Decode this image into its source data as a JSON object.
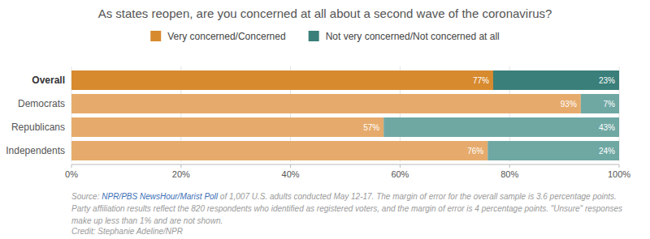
{
  "chart_data": {
    "type": "bar",
    "orientation": "horizontal",
    "stacked": true,
    "title": "As states reopen, are you concerned at all about a second wave of the coronavirus?",
    "categories": [
      "Overall",
      "Democrats",
      "Republicans",
      "Independents"
    ],
    "series": [
      {
        "name": "Very concerned/Concerned",
        "color": "#d78a2e",
        "colors": [
          "#d78a2e",
          "#e6ab6c",
          "#e6ab6c",
          "#e6ab6c"
        ],
        "values": [
          77,
          93,
          57,
          76
        ],
        "value_labels": [
          "77%",
          "93%",
          "57%",
          "76%"
        ]
      },
      {
        "name": "Not very concerned/Not concerned at all",
        "color": "#3a7f79",
        "colors": [
          "#3a7f79",
          "#6fa8a3",
          "#6fa8a3",
          "#6fa8a3"
        ],
        "values": [
          23,
          7,
          43,
          24
        ],
        "value_labels": [
          "23%",
          "7%",
          "43%",
          "24%"
        ]
      }
    ],
    "xlim": [
      0,
      100
    ],
    "xticks": [
      {
        "value": 0,
        "label": "0%"
      },
      {
        "value": 20,
        "label": "20%"
      },
      {
        "value": 40,
        "label": "40%"
      },
      {
        "value": 60,
        "label": "60%"
      },
      {
        "value": 80,
        "label": "80%"
      },
      {
        "value": 100,
        "label": "100%"
      }
    ],
    "grid": true,
    "legend": "top",
    "data_labels": true,
    "annotations": {
      "source_prefix": "Source: ",
      "source_link": "NPR/PBS NewsHour/Marist Poll",
      "source_text": " of 1,007 U.S. adults conducted May 12-17. The margin of error for the overall sample is 3.6 percentage points. Party affiliation results reflect the 820 respondents who identified as registered voters, and the margin of error is 4 percentage points. \"Unsure\" responses make up less than 1% and are not shown.",
      "credit": "Credit: Stephanie Adeline/NPR"
    }
  }
}
